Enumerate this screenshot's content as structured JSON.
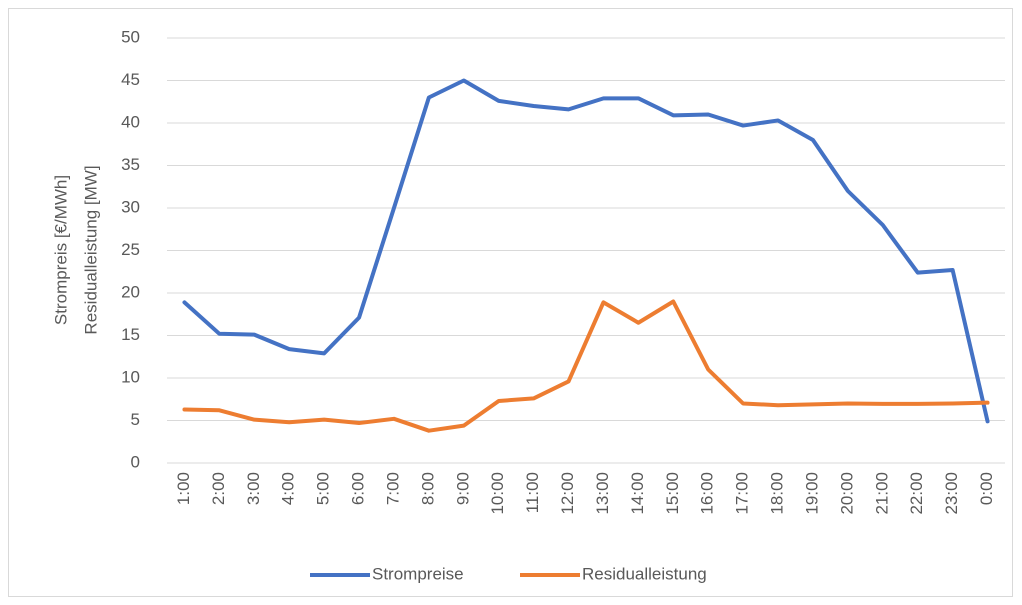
{
  "chart_data": {
    "type": "line",
    "ylabel": [
      "Strompreis [€/MWh]",
      "Residualleistung [MW]"
    ],
    "categories": [
      "1:00",
      "2:00",
      "3:00",
      "4:00",
      "5:00",
      "6:00",
      "7:00",
      "8:00",
      "9:00",
      "10:00",
      "11:00",
      "12:00",
      "13:00",
      "14:00",
      "15:00",
      "16:00",
      "17:00",
      "18:00",
      "19:00",
      "20:00",
      "21:00",
      "22:00",
      "23:00",
      "0:00"
    ],
    "series": [
      {
        "name": "Strompreise",
        "color": "#4472c4",
        "values": [
          18.9,
          15.2,
          15.1,
          13.4,
          12.9,
          17.1,
          30,
          43,
          45,
          42.6,
          42,
          41.6,
          42.9,
          42.9,
          40.9,
          41,
          39.7,
          40.3,
          38,
          32,
          28,
          22.4,
          22.7,
          4.9
        ]
      },
      {
        "name": "Residualleistung",
        "color": "#ed7d31",
        "values": [
          6.3,
          6.2,
          5.1,
          4.8,
          5.1,
          4.7,
          5.2,
          3.8,
          4.4,
          7.3,
          7.6,
          9.6,
          18.9,
          16.5,
          19,
          11,
          7,
          6.8,
          6.9,
          7,
          6.95,
          6.95,
          7,
          7.1
        ]
      }
    ],
    "ylim": [
      0,
      50
    ],
    "yticks": [
      0,
      5,
      10,
      15,
      20,
      25,
      30,
      35,
      40,
      45,
      50
    ],
    "grid": true,
    "legend": "bottom"
  }
}
